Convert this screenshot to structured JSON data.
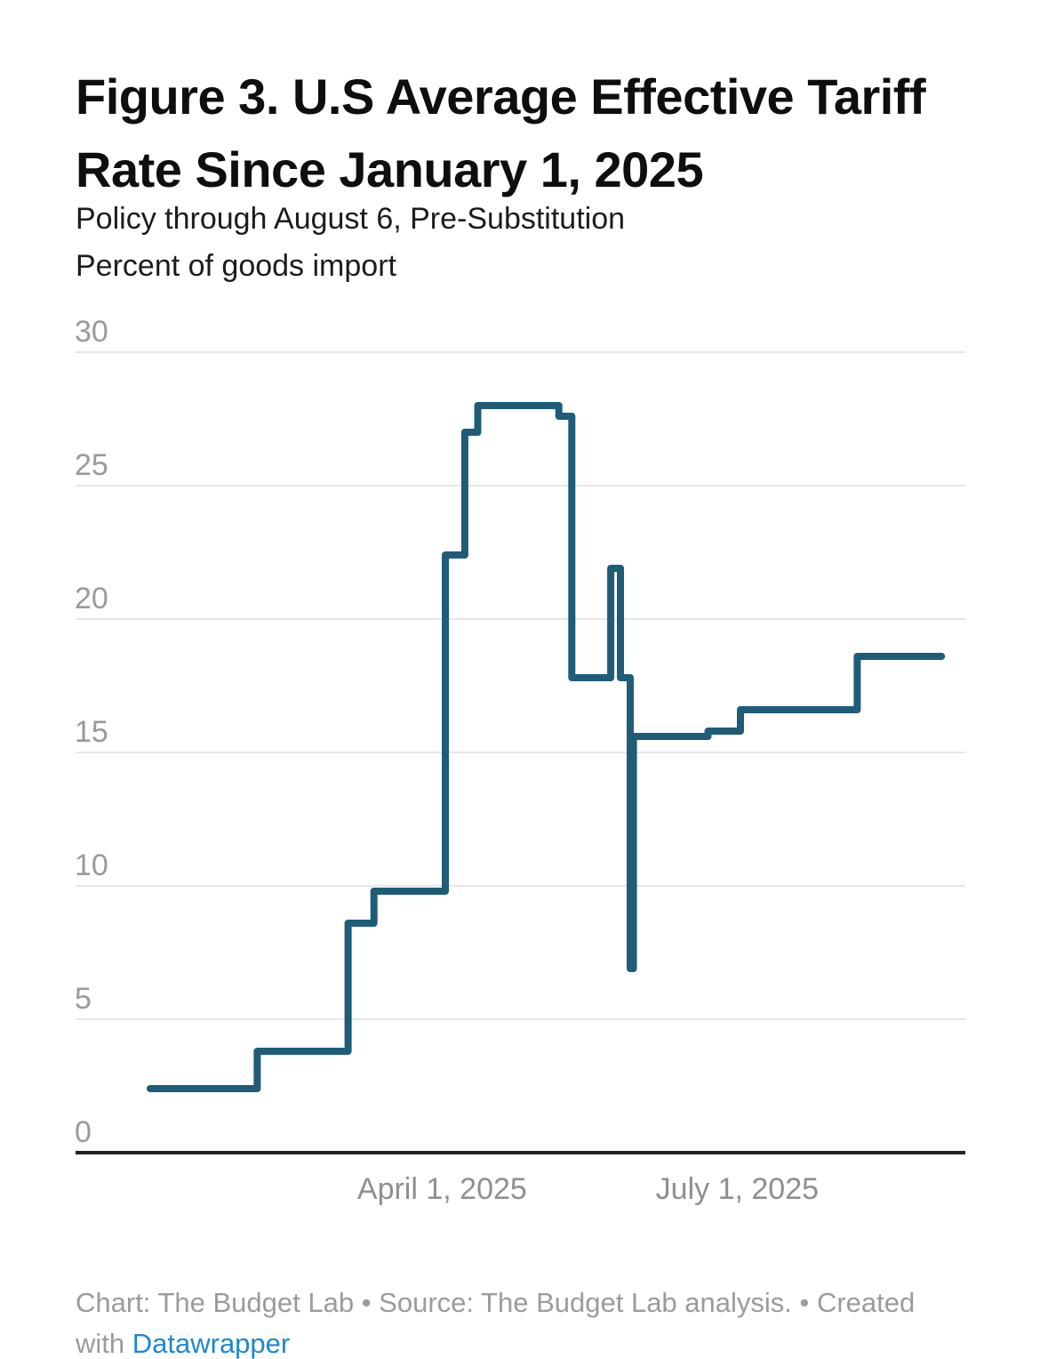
{
  "chart_data": {
    "type": "line",
    "line_style": "step-after",
    "title": "Figure 3. U.S Average Effective Tariff Rate Since January 1, 2025",
    "subtitle": "Policy through August 6, Pre-Substitution",
    "ylabel": "Percent of goods import",
    "xlabel": "",
    "x_unit": "days since Jan 1, 2025",
    "points": [
      {
        "day": 0,
        "value": 2.4
      },
      {
        "day": 33,
        "value": 3.8
      },
      {
        "day": 61,
        "value": 8.6
      },
      {
        "day": 69,
        "value": 9.8
      },
      {
        "day": 91,
        "value": 22.4
      },
      {
        "day": 97,
        "value": 27.0
      },
      {
        "day": 101,
        "value": 28.0
      },
      {
        "day": 126,
        "value": 27.6
      },
      {
        "day": 130,
        "value": 17.8
      },
      {
        "day": 142,
        "value": 21.9
      },
      {
        "day": 145,
        "value": 17.8
      },
      {
        "day": 148,
        "value": 6.9
      },
      {
        "day": 149,
        "value": 15.6
      },
      {
        "day": 172,
        "value": 15.8
      },
      {
        "day": 182,
        "value": 16.6
      },
      {
        "day": 218,
        "value": 18.6
      },
      {
        "day": 244,
        "value": 18.6
      }
    ],
    "y_ticks": [
      0,
      5,
      10,
      15,
      20,
      25,
      30
    ],
    "ylim": [
      0,
      30
    ],
    "x_ticks": [
      {
        "day": 90,
        "label": "April 1, 2025"
      },
      {
        "day": 181,
        "label": "July 1, 2025"
      }
    ],
    "grid": true,
    "legend_position": "none",
    "colors": {
      "line": "#1f5c78",
      "grid": "#e6e6e6",
      "baseline": "#212121",
      "y_tick_label": "#9a9a9a",
      "x_tick_label": "#8f8f8f"
    }
  },
  "footer": {
    "line1": "Chart: The Budget Lab • Source: The Budget Lab analysis. • Created",
    "line2_prefix": "with ",
    "link_label": "Datawrapper",
    "link_color": "#1d87d2",
    "text_color": "#9b9b9b"
  }
}
